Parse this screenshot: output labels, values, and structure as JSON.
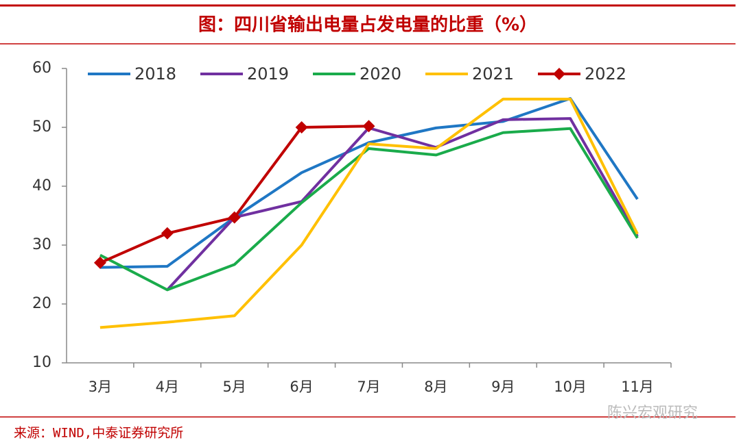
{
  "chart_data": {
    "type": "line",
    "title": "图：四川省输出电量占发电量的比重（%）",
    "source": "来源：WIND,中泰证券研究所",
    "watermark": "陈兴宏观研究",
    "categories": [
      "3月",
      "4月",
      "5月",
      "6月",
      "7月",
      "8月",
      "9月",
      "10月",
      "11月"
    ],
    "series": [
      {
        "name": "2018",
        "color": "#1f77c4",
        "values": [
          26.2,
          26.4,
          34.7,
          42.3,
          47.4,
          49.9,
          51.0,
          54.9,
          37.8
        ]
      },
      {
        "name": "2019",
        "color": "#7030a0",
        "values": [
          null,
          22.4,
          34.7,
          37.4,
          49.9,
          46.6,
          51.3,
          51.5,
          31.5
        ]
      },
      {
        "name": "2020",
        "color": "#1aab4b",
        "values": [
          28.3,
          22.4,
          26.7,
          37.2,
          46.4,
          45.3,
          49.1,
          49.8,
          31.2
        ]
      },
      {
        "name": "2021",
        "color": "#ffc000",
        "values": [
          16.0,
          16.9,
          18.0,
          30.0,
          47.2,
          46.4,
          54.8,
          54.8,
          31.9
        ]
      },
      {
        "name": "2022",
        "color": "#c00000",
        "marker": "diamond",
        "values": [
          27.0,
          32.0,
          34.7,
          50.0,
          50.2,
          null,
          null,
          null,
          null
        ]
      }
    ],
    "ylim": [
      10,
      60
    ],
    "yticks": [
      10,
      20,
      30,
      40,
      50,
      60
    ],
    "grid": false,
    "legend": "top"
  }
}
